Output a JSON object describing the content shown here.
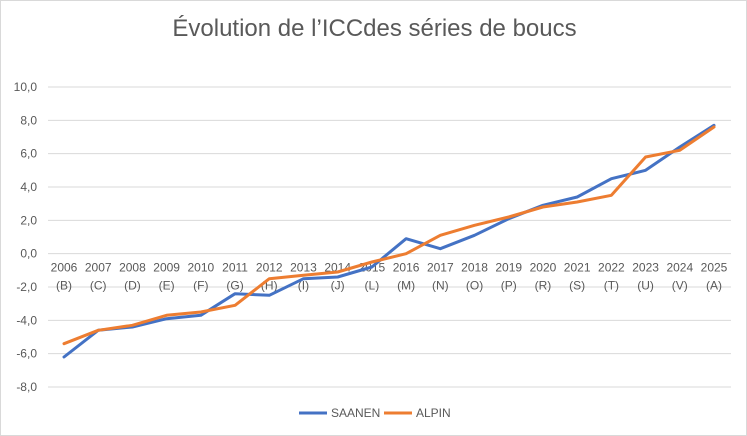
{
  "colors": {
    "SAANEN": "#4472C4",
    "ALPIN": "#ED7D31",
    "grid": "#d9d9d9",
    "text": "#595959"
  },
  "chart_data": {
    "type": "line",
    "title": "Évolution de l’ICCdes séries de boucs",
    "xlabel": "",
    "ylabel": "",
    "ylim": [
      -8,
      10
    ],
    "yticks": [
      "10,0",
      "8,0",
      "6,0",
      "4,0",
      "2,0",
      "0,0",
      "-2,0",
      "-4,0",
      "-6,0",
      "-8,0"
    ],
    "grid": true,
    "legend_position": "bottom",
    "categories": [
      "2006",
      "2007",
      "2008",
      "2009",
      "2010",
      "2011",
      "2012",
      "2013",
      "2014",
      "2015",
      "2016",
      "2017",
      "2018",
      "2019",
      "2020",
      "2021",
      "2022",
      "2023",
      "2024",
      "2025"
    ],
    "category_letters": [
      "(B)",
      "(C)",
      "(D)",
      "(E)",
      "(F)",
      "(G)",
      "(H)",
      "(I)",
      "(J)",
      "(L)",
      "(M)",
      "(N)",
      "(O)",
      "(P)",
      "(R)",
      "(S)",
      "(T)",
      "(U)",
      "(V)",
      "(A)"
    ],
    "series": [
      {
        "name": "SAANEN",
        "values": [
          -6.2,
          -4.6,
          -4.4,
          -3.9,
          -3.7,
          -2.4,
          -2.5,
          -1.5,
          -1.4,
          -0.8,
          0.9,
          0.3,
          1.1,
          2.1,
          2.9,
          3.4,
          4.5,
          5.0,
          6.4,
          7.7
        ]
      },
      {
        "name": "ALPIN",
        "values": [
          -5.4,
          -4.6,
          -4.3,
          -3.7,
          -3.5,
          -3.1,
          -1.5,
          -1.3,
          -1.1,
          -0.5,
          0.0,
          1.1,
          1.7,
          2.2,
          2.8,
          3.1,
          3.5,
          5.8,
          6.2,
          7.6
        ]
      }
    ]
  }
}
